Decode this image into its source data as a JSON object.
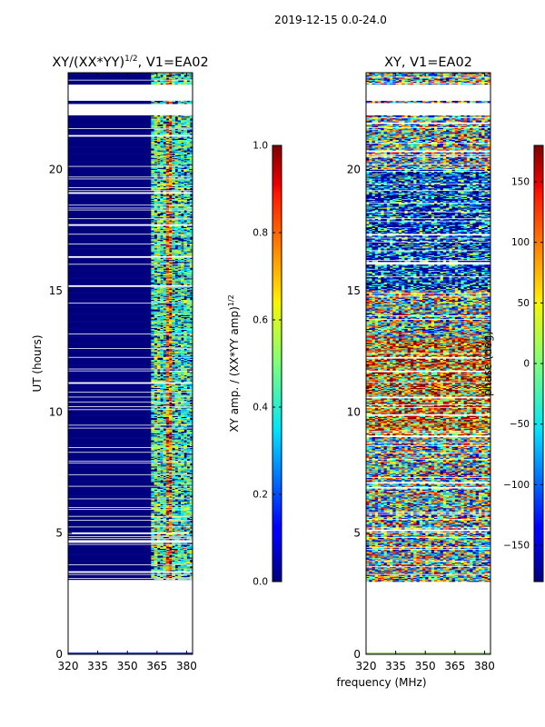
{
  "suptitle": "2019-12-15 0.0-24.0",
  "shared_xlabel": "frequency (MHz)",
  "chart_data": [
    {
      "type": "heatmap",
      "title_main": "XY/(XX*YY)",
      "title_sup": "1/2",
      "title_rest": ", V1=EA02",
      "ylabel": "UT (hours)",
      "xlim": [
        320,
        383
      ],
      "ylim": [
        0,
        24
      ],
      "xticks": [
        320,
        335,
        350,
        365,
        380
      ],
      "yticks": [
        0,
        5,
        10,
        15,
        20
      ],
      "colorbar": {
        "label_main": "XY amp. / (XX*YY amp)",
        "label_sup": "1/2",
        "range": [
          0.0,
          1.0
        ],
        "ticks": [
          "0.0",
          "0.2",
          "0.4",
          "0.6",
          "0.8",
          "1.0"
        ],
        "tick_values": [
          0.0,
          0.2,
          0.4,
          0.6,
          0.8,
          1.0
        ],
        "colormap": "jet"
      },
      "data_hours": [
        3.0,
        24.0
      ],
      "gap_hours": [
        [
          22.2,
          22.7
        ],
        [
          22.85,
          23.5
        ]
      ]
    },
    {
      "type": "heatmap",
      "title_main": "XY, V1=EA02",
      "title_sup": "",
      "title_rest": "",
      "ylabel": "",
      "xlim": [
        320,
        383
      ],
      "ylim": [
        0,
        24
      ],
      "xticks": [
        320,
        335,
        350,
        365,
        380
      ],
      "yticks": [
        0,
        5,
        10,
        15,
        20
      ],
      "colorbar": {
        "label_main": "phase (deg)",
        "label_sup": "",
        "range": [
          -180,
          180
        ],
        "ticks": [
          "−150",
          "−100",
          "−50",
          "0",
          "50",
          "100",
          "150"
        ],
        "tick_values": [
          -150,
          -100,
          -50,
          0,
          50,
          100,
          150
        ],
        "colormap": "jet"
      },
      "data_hours": [
        3.0,
        24.0
      ],
      "gap_hours": [
        [
          22.2,
          22.7
        ],
        [
          22.85,
          23.5
        ]
      ]
    }
  ]
}
